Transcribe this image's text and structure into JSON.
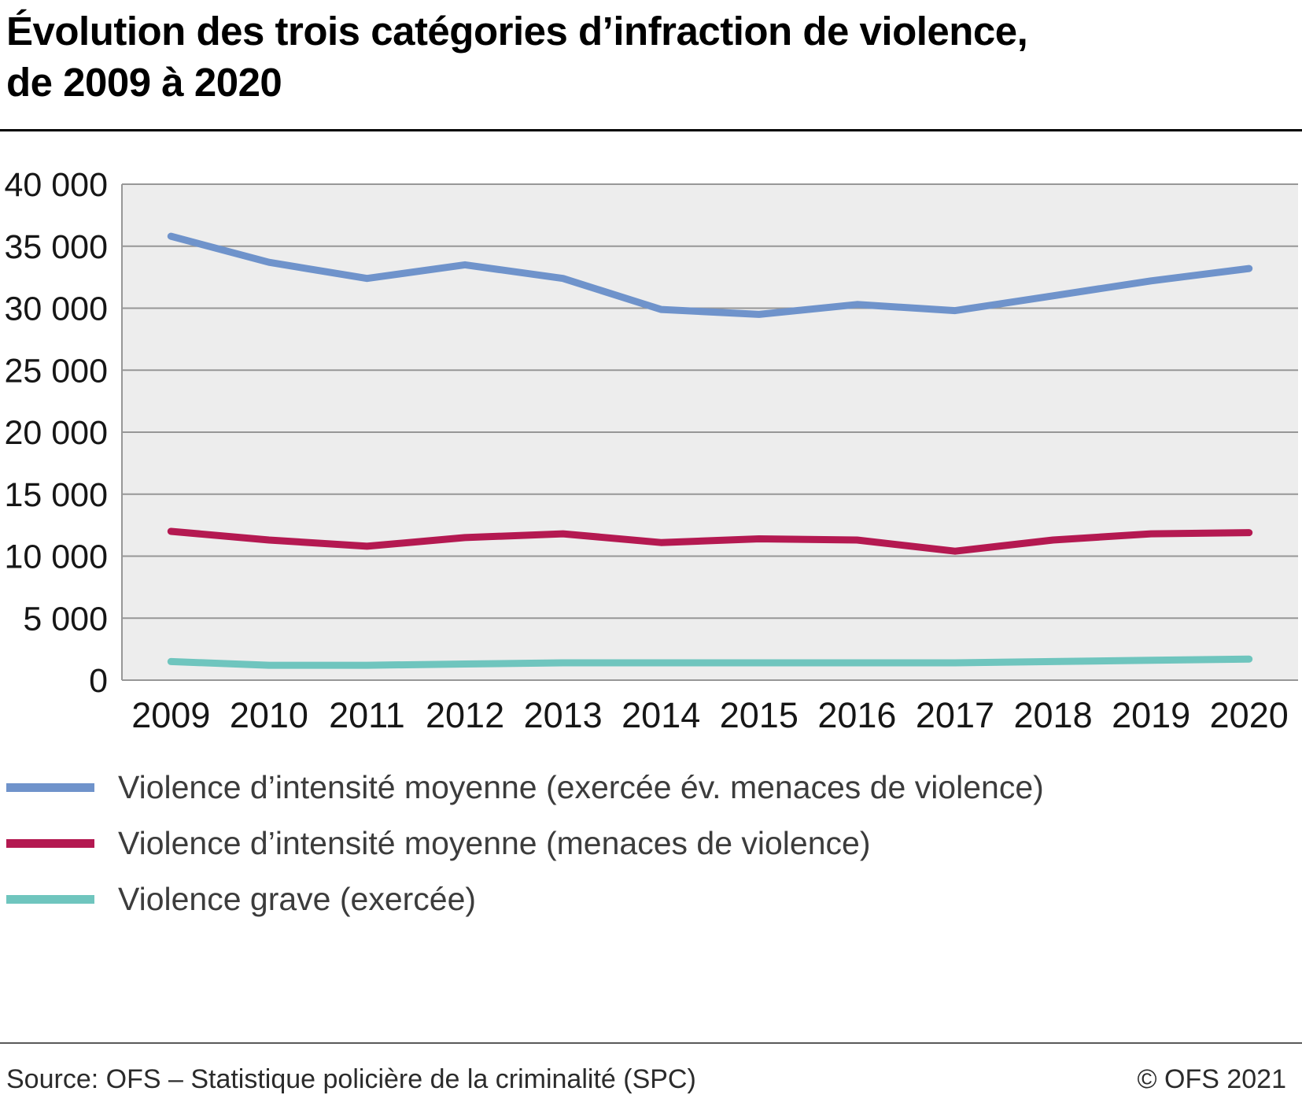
{
  "title": {
    "line1": "Évolution des trois catégories d’infraction de violence,",
    "line2": "de 2009 à 2020"
  },
  "footer": {
    "source": "Source: OFS – Statistique policière de la criminalité (SPC)",
    "copyright": "© OFS 2021"
  },
  "chart_data": {
    "type": "line",
    "title": "Évolution des trois catégories d’infraction de violence, de 2009 à 2020",
    "categories": [
      "2009",
      "2010",
      "2011",
      "2012",
      "2013",
      "2014",
      "2015",
      "2016",
      "2017",
      "2018",
      "2019",
      "2020"
    ],
    "series": [
      {
        "name": "Violence d’intensité moyenne (exercée év. menaces de violence)",
        "color": "#6f93cb",
        "values": [
          35800,
          33700,
          32400,
          33500,
          32400,
          29900,
          29500,
          30300,
          29800,
          31000,
          32200,
          33200
        ]
      },
      {
        "name": "Violence d’intensité moyenne (menaces de violence)",
        "color": "#b41951",
        "values": [
          12000,
          11300,
          10800,
          11500,
          11800,
          11100,
          11400,
          11300,
          10400,
          11300,
          11800,
          11900
        ]
      },
      {
        "name": "Violence grave (exercée)",
        "color": "#6fc5be",
        "values": [
          1500,
          1200,
          1200,
          1300,
          1400,
          1400,
          1400,
          1400,
          1400,
          1500,
          1600,
          1700
        ]
      }
    ],
    "xlabel": "",
    "ylabel": "",
    "ylim": [
      0,
      40000
    ],
    "ytick_step": 5000,
    "ytick_labels": [
      "0",
      "5 000",
      "10 000",
      "15 000",
      "20 000",
      "25 000",
      "30 000",
      "35 000",
      "40 000"
    ],
    "grid": true,
    "legend_position": "bottom",
    "plot_bg": "#ededed",
    "grid_color": "#979797",
    "tick_color": "#161616"
  }
}
